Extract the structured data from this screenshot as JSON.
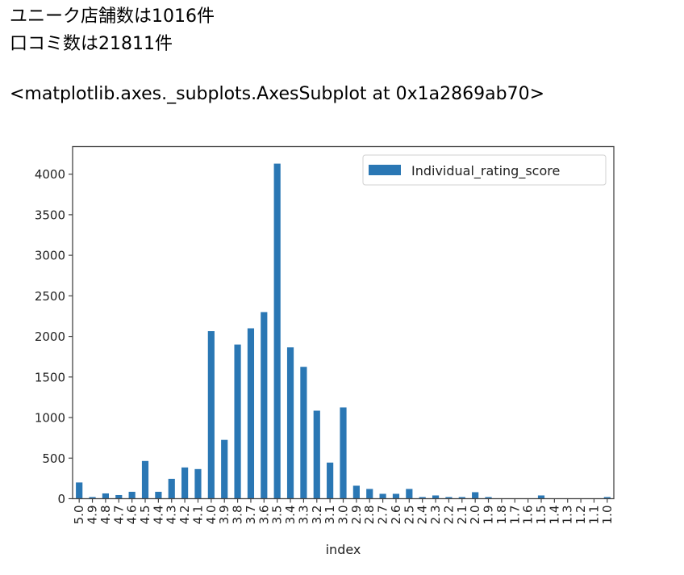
{
  "output": {
    "line1": "ユニーク店舗数は1016件",
    "line2": "口コミ数は21811件",
    "repr": "<matplotlib.axes._subplots.AxesSubplot at 0x1a2869ab70>"
  },
  "colors": {
    "bar": "#2a77b4",
    "axis": "#444444",
    "text": "#222222"
  },
  "chart_data": {
    "type": "bar",
    "title": "",
    "xlabel": "index",
    "ylabel": "",
    "ylim": [
      0,
      4340
    ],
    "yticks": [
      0,
      500,
      1000,
      1500,
      2000,
      2500,
      3000,
      3500,
      4000
    ],
    "grid": false,
    "legend_position": "upper right",
    "categories": [
      "5.0",
      "4.9",
      "4.8",
      "4.7",
      "4.6",
      "4.5",
      "4.4",
      "4.3",
      "4.2",
      "4.1",
      "4.0",
      "3.9",
      "3.8",
      "3.7",
      "3.6",
      "3.5",
      "3.4",
      "3.3",
      "3.2",
      "3.1",
      "3.0",
      "2.9",
      "2.8",
      "2.7",
      "2.6",
      "2.5",
      "2.4",
      "2.3",
      "2.2",
      "2.1",
      "2.0",
      "1.9",
      "1.8",
      "1.7",
      "1.6",
      "1.5",
      "1.4",
      "1.3",
      "1.2",
      "1.1",
      "1.0"
    ],
    "series": [
      {
        "name": "Individual_rating_score",
        "values": [
          200,
          20,
          65,
          45,
          85,
          465,
          85,
          245,
          385,
          365,
          2065,
          725,
          1900,
          2100,
          2300,
          4130,
          1865,
          1625,
          1085,
          445,
          1125,
          160,
          120,
          60,
          60,
          120,
          20,
          40,
          20,
          20,
          80,
          20,
          0,
          0,
          0,
          40,
          0,
          0,
          0,
          0,
          20
        ]
      }
    ]
  }
}
